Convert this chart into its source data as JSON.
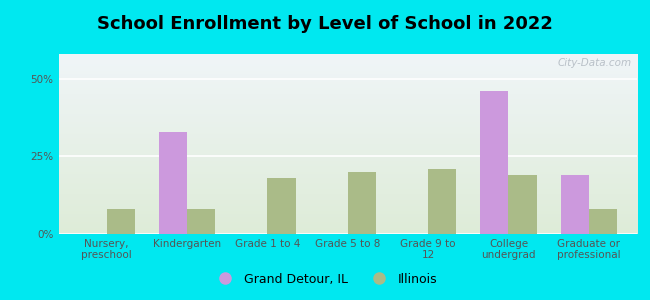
{
  "title": "School Enrollment by Level of School in 2022",
  "categories": [
    "Nursery,\npreschool",
    "Kindergarten",
    "Grade 1 to 4",
    "Grade 5 to 8",
    "Grade 9 to\n12",
    "College\nundergrad",
    "Graduate or\nprofessional"
  ],
  "grand_detour": [
    0,
    33,
    0,
    0,
    0,
    46,
    19
  ],
  "illinois": [
    8,
    8,
    18,
    20,
    21,
    19,
    8
  ],
  "grand_detour_color": "#cc99dd",
  "illinois_color": "#aabb88",
  "bg_outer": "#00e8f0",
  "bg_plot_top": "#f0f5f8",
  "bg_plot_bottom": "#deecd8",
  "yticks": [
    0,
    25,
    50
  ],
  "ylim": [
    0,
    58
  ],
  "bar_width": 0.35,
  "legend_labels": [
    "Grand Detour, IL",
    "Illinois"
  ],
  "watermark": "City-Data.com",
  "title_fontsize": 13,
  "tick_fontsize": 7.5,
  "legend_fontsize": 9
}
